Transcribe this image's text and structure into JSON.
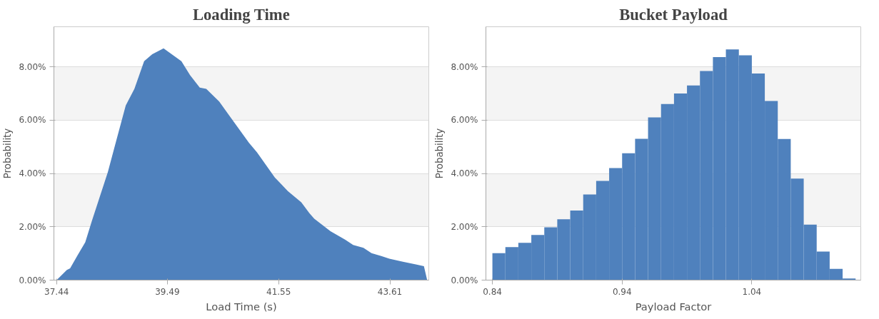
{
  "chart_data": [
    {
      "type": "area",
      "title": "Loading Time",
      "xlabel": "Load Time (s)",
      "ylabel": "Probability",
      "color": "#4f81bd",
      "x": [
        37.44,
        37.63,
        37.69,
        37.82,
        37.97,
        38.09,
        38.24,
        38.39,
        38.54,
        38.72,
        38.88,
        39.06,
        39.21,
        39.42,
        39.75,
        39.91,
        40.09,
        40.21,
        40.45,
        40.63,
        41.0,
        41.15,
        41.48,
        41.72,
        41.97,
        42.12,
        42.21,
        42.51,
        42.78,
        42.93,
        43.12,
        43.27,
        43.45,
        43.6,
        43.85,
        44.09,
        44.24,
        44.3
      ],
      "values": [
        0,
        0.38,
        0.44,
        0.9,
        1.42,
        2.2,
        3.13,
        4.06,
        5.2,
        6.55,
        7.17,
        8.21,
        8.47,
        8.69,
        8.21,
        7.69,
        7.22,
        7.17,
        6.7,
        6.19,
        5.15,
        4.79,
        3.85,
        3.34,
        2.92,
        2.51,
        2.3,
        1.83,
        1.52,
        1.32,
        1.21,
        1.01,
        0.9,
        0.8,
        0.69,
        0.59,
        0.52,
        0
      ],
      "xlim": [
        37.39,
        44.33
      ],
      "xticks": [
        37.44,
        39.49,
        41.55,
        43.61
      ],
      "ylim": [
        0,
        9.5
      ],
      "yticks": [
        {
          "value": 0,
          "label": "0.00%"
        },
        {
          "value": 2,
          "label": "2.00%"
        },
        {
          "value": 4,
          "label": "4.00%"
        },
        {
          "value": 6,
          "label": "6.00%"
        },
        {
          "value": 8,
          "label": "8.00%"
        }
      ],
      "grid": "y"
    },
    {
      "type": "histogram",
      "title": "Bucket Payload",
      "xlabel": "Payload Factor",
      "ylabel": "Probability",
      "color": "#4f81bd",
      "bins": [
        0.84,
        0.85,
        0.86,
        0.87,
        0.88,
        0.89,
        0.9,
        0.91,
        0.92,
        0.93,
        0.94,
        0.95,
        0.96,
        0.97,
        0.98,
        0.99,
        1.0,
        1.01,
        1.02,
        1.03,
        1.04,
        1.05,
        1.06,
        1.07,
        1.08,
        1.09,
        1.1,
        1.11,
        1.12
      ],
      "values": [
        1.01,
        1.24,
        1.4,
        1.69,
        1.98,
        2.28,
        2.61,
        3.21,
        3.72,
        4.2,
        4.76,
        5.3,
        6.1,
        6.6,
        7.0,
        7.3,
        7.84,
        8.36,
        8.65,
        8.43,
        7.75,
        6.72,
        5.29,
        3.81,
        2.08,
        1.07,
        0.42,
        0.06
      ],
      "xlim": [
        0.835,
        1.124
      ],
      "xticks": [
        0.84,
        0.94,
        1.04
      ],
      "ylim": [
        0,
        9.5
      ],
      "yticks": [
        {
          "value": 0,
          "label": "0.00%"
        },
        {
          "value": 2,
          "label": "2.00%"
        },
        {
          "value": 4,
          "label": "4.00%"
        },
        {
          "value": 6,
          "label": "6.00%"
        },
        {
          "value": 8,
          "label": "8.00%"
        }
      ],
      "grid": "y"
    }
  ]
}
